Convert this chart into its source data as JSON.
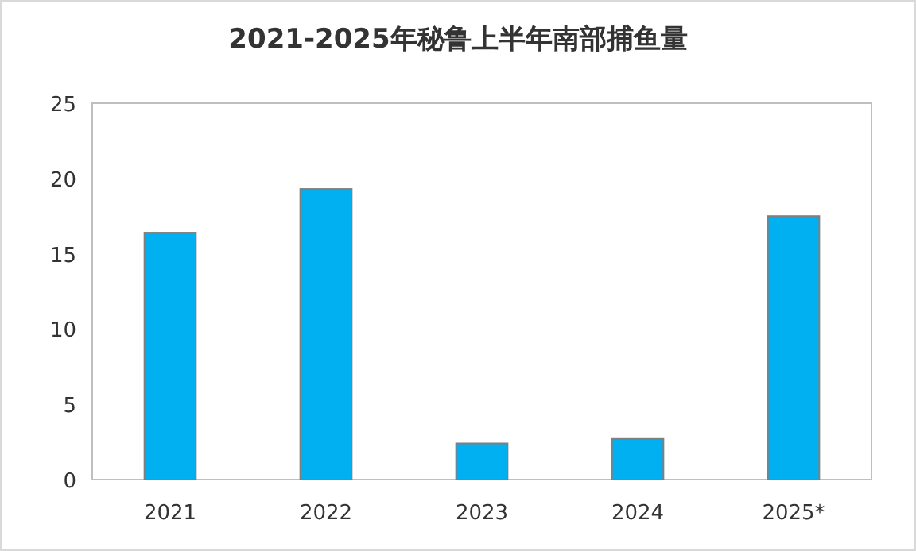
{
  "chart_data": {
    "type": "bar",
    "title": "2021-2025年秘鲁上半年南部捕鱼量",
    "categories": [
      "2021",
      "2022",
      "2023",
      "2024",
      "2025*"
    ],
    "values": [
      16.4,
      19.3,
      2.4,
      2.7,
      17.5
    ],
    "color": "#00b0f0",
    "ylim": [
      0,
      25
    ],
    "yticks": [
      0,
      5,
      10,
      15,
      20,
      25
    ],
    "grid": false
  }
}
